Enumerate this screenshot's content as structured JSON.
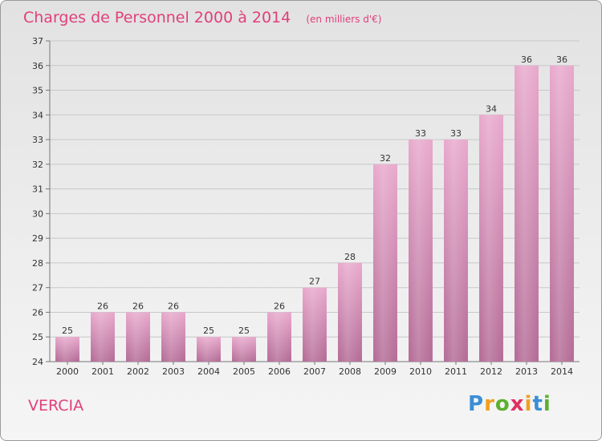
{
  "chart_data": {
    "type": "bar",
    "title": "Charges de Personnel 2000 à 2014",
    "subtitle": "(en milliers d'€)",
    "categories": [
      "2000",
      "2001",
      "2002",
      "2003",
      "2004",
      "2005",
      "2006",
      "2007",
      "2008",
      "2009",
      "2010",
      "2011",
      "2012",
      "2013",
      "2014"
    ],
    "values": [
      25,
      26,
      26,
      26,
      25,
      25,
      26,
      27,
      28,
      32,
      33,
      33,
      34,
      36,
      36
    ],
    "ylim": [
      24,
      37
    ],
    "yticks": [
      24,
      25,
      26,
      27,
      28,
      29,
      30,
      31,
      32,
      33,
      34,
      35,
      36,
      37
    ],
    "grid": true,
    "bar_color_top": "#e8a8cc",
    "bar_color_bottom": "#b36a95",
    "value_labels": true
  },
  "commune": "VERCIA",
  "logo": {
    "letters": [
      "P",
      "r",
      "o",
      "x",
      "i",
      "t",
      "i"
    ],
    "colors": [
      "#3a8fd6",
      "#f0a020",
      "#5cb030",
      "#e03060",
      "#f0a020",
      "#3a8fd6",
      "#5cb030"
    ]
  }
}
